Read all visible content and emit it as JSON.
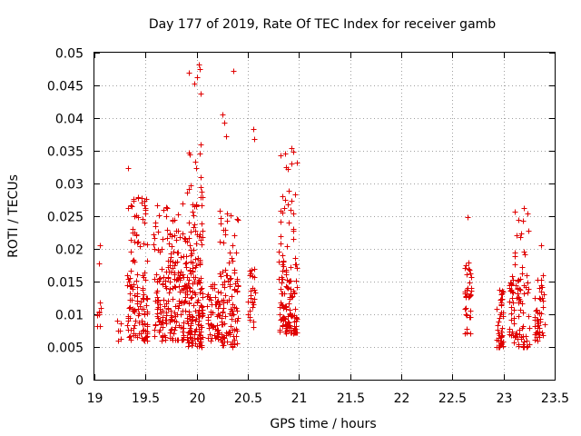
{
  "chart_data": {
    "type": "scatter",
    "title": "Day 177 of 2019, Rate Of TEC Index for receiver gamb",
    "xlabel": "GPS time / hours",
    "ylabel": "ROTI / TECUs",
    "xlim": [
      19,
      23.5
    ],
    "ylim": [
      0,
      0.05
    ],
    "grid": true,
    "marker": "plus",
    "color": "#e00000",
    "xticks": [
      19,
      19.5,
      20,
      20.5,
      21,
      21.5,
      22,
      22.5,
      23,
      23.5
    ],
    "xtick_labels": [
      "19",
      "19.5",
      "20",
      "20.5",
      "21",
      "21.5",
      "22",
      "22.5",
      "23",
      "23.5"
    ],
    "yticks": [
      0,
      0.005,
      0.01,
      0.015,
      0.02,
      0.025,
      0.03,
      0.035,
      0.04,
      0.045,
      0.05
    ],
    "ytick_labels": [
      "0",
      "0.005",
      "0.01",
      "0.015",
      "0.02",
      "0.025",
      "0.03",
      "0.035",
      "0.04",
      "0.045",
      "0.05"
    ],
    "clusters": [
      {
        "xmin": 19.02,
        "xmax": 19.06,
        "ymin": 0.008,
        "ymax": 0.012,
        "n": 8
      },
      {
        "xmin": 19.22,
        "xmax": 19.26,
        "ymin": 0.006,
        "ymax": 0.01,
        "n": 6
      },
      {
        "xmin": 19.32,
        "xmax": 19.52,
        "ymin": 0.006,
        "ymax": 0.016,
        "n": 90
      },
      {
        "xmin": 19.33,
        "xmax": 19.52,
        "ymin": 0.016,
        "ymax": 0.028,
        "n": 40
      },
      {
        "xmin": 19.58,
        "xmax": 19.9,
        "ymin": 0.006,
        "ymax": 0.016,
        "n": 140
      },
      {
        "xmin": 19.58,
        "xmax": 19.9,
        "ymin": 0.016,
        "ymax": 0.027,
        "n": 70
      },
      {
        "xmin": 19.9,
        "xmax": 20.06,
        "ymin": 0.005,
        "ymax": 0.016,
        "n": 120
      },
      {
        "xmin": 19.9,
        "xmax": 20.06,
        "ymin": 0.016,
        "ymax": 0.036,
        "n": 60
      },
      {
        "xmin": 20.1,
        "xmax": 20.22,
        "ymin": 0.006,
        "ymax": 0.015,
        "n": 50
      },
      {
        "xmin": 20.22,
        "xmax": 20.4,
        "ymin": 0.005,
        "ymax": 0.016,
        "n": 90
      },
      {
        "xmin": 20.22,
        "xmax": 20.4,
        "ymin": 0.016,
        "ymax": 0.027,
        "n": 25
      },
      {
        "xmin": 20.5,
        "xmax": 20.58,
        "ymin": 0.008,
        "ymax": 0.017,
        "n": 25
      },
      {
        "xmin": 20.8,
        "xmax": 20.98,
        "ymin": 0.007,
        "ymax": 0.016,
        "n": 90
      },
      {
        "xmin": 20.8,
        "xmax": 20.98,
        "ymin": 0.016,
        "ymax": 0.035,
        "n": 45
      },
      {
        "xmin": 22.62,
        "xmax": 22.69,
        "ymin": 0.007,
        "ymax": 0.018,
        "n": 35
      },
      {
        "xmin": 22.93,
        "xmax": 23.0,
        "ymin": 0.005,
        "ymax": 0.014,
        "n": 40
      },
      {
        "xmin": 23.05,
        "xmax": 23.25,
        "ymin": 0.005,
        "ymax": 0.016,
        "n": 80
      },
      {
        "xmin": 23.1,
        "xmax": 23.25,
        "ymin": 0.016,
        "ymax": 0.026,
        "n": 15
      },
      {
        "xmin": 23.3,
        "xmax": 23.4,
        "ymin": 0.006,
        "ymax": 0.016,
        "n": 45
      }
    ],
    "outliers": [
      {
        "x": 19.05,
        "y": 0.0205
      },
      {
        "x": 19.04,
        "y": 0.0178
      },
      {
        "x": 19.33,
        "y": 0.0323
      },
      {
        "x": 19.92,
        "y": 0.047
      },
      {
        "x": 19.98,
        "y": 0.0453
      },
      {
        "x": 20.0,
        "y": 0.0462
      },
      {
        "x": 20.02,
        "y": 0.0482
      },
      {
        "x": 20.03,
        "y": 0.0475
      },
      {
        "x": 20.04,
        "y": 0.0437
      },
      {
        "x": 20.36,
        "y": 0.0472
      },
      {
        "x": 20.25,
        "y": 0.0405
      },
      {
        "x": 20.27,
        "y": 0.0393
      },
      {
        "x": 20.29,
        "y": 0.0372
      },
      {
        "x": 20.55,
        "y": 0.0383
      },
      {
        "x": 20.56,
        "y": 0.0368
      },
      {
        "x": 20.93,
        "y": 0.0354
      },
      {
        "x": 22.65,
        "y": 0.0249
      },
      {
        "x": 23.2,
        "y": 0.0262
      },
      {
        "x": 23.37,
        "y": 0.0206
      }
    ]
  }
}
